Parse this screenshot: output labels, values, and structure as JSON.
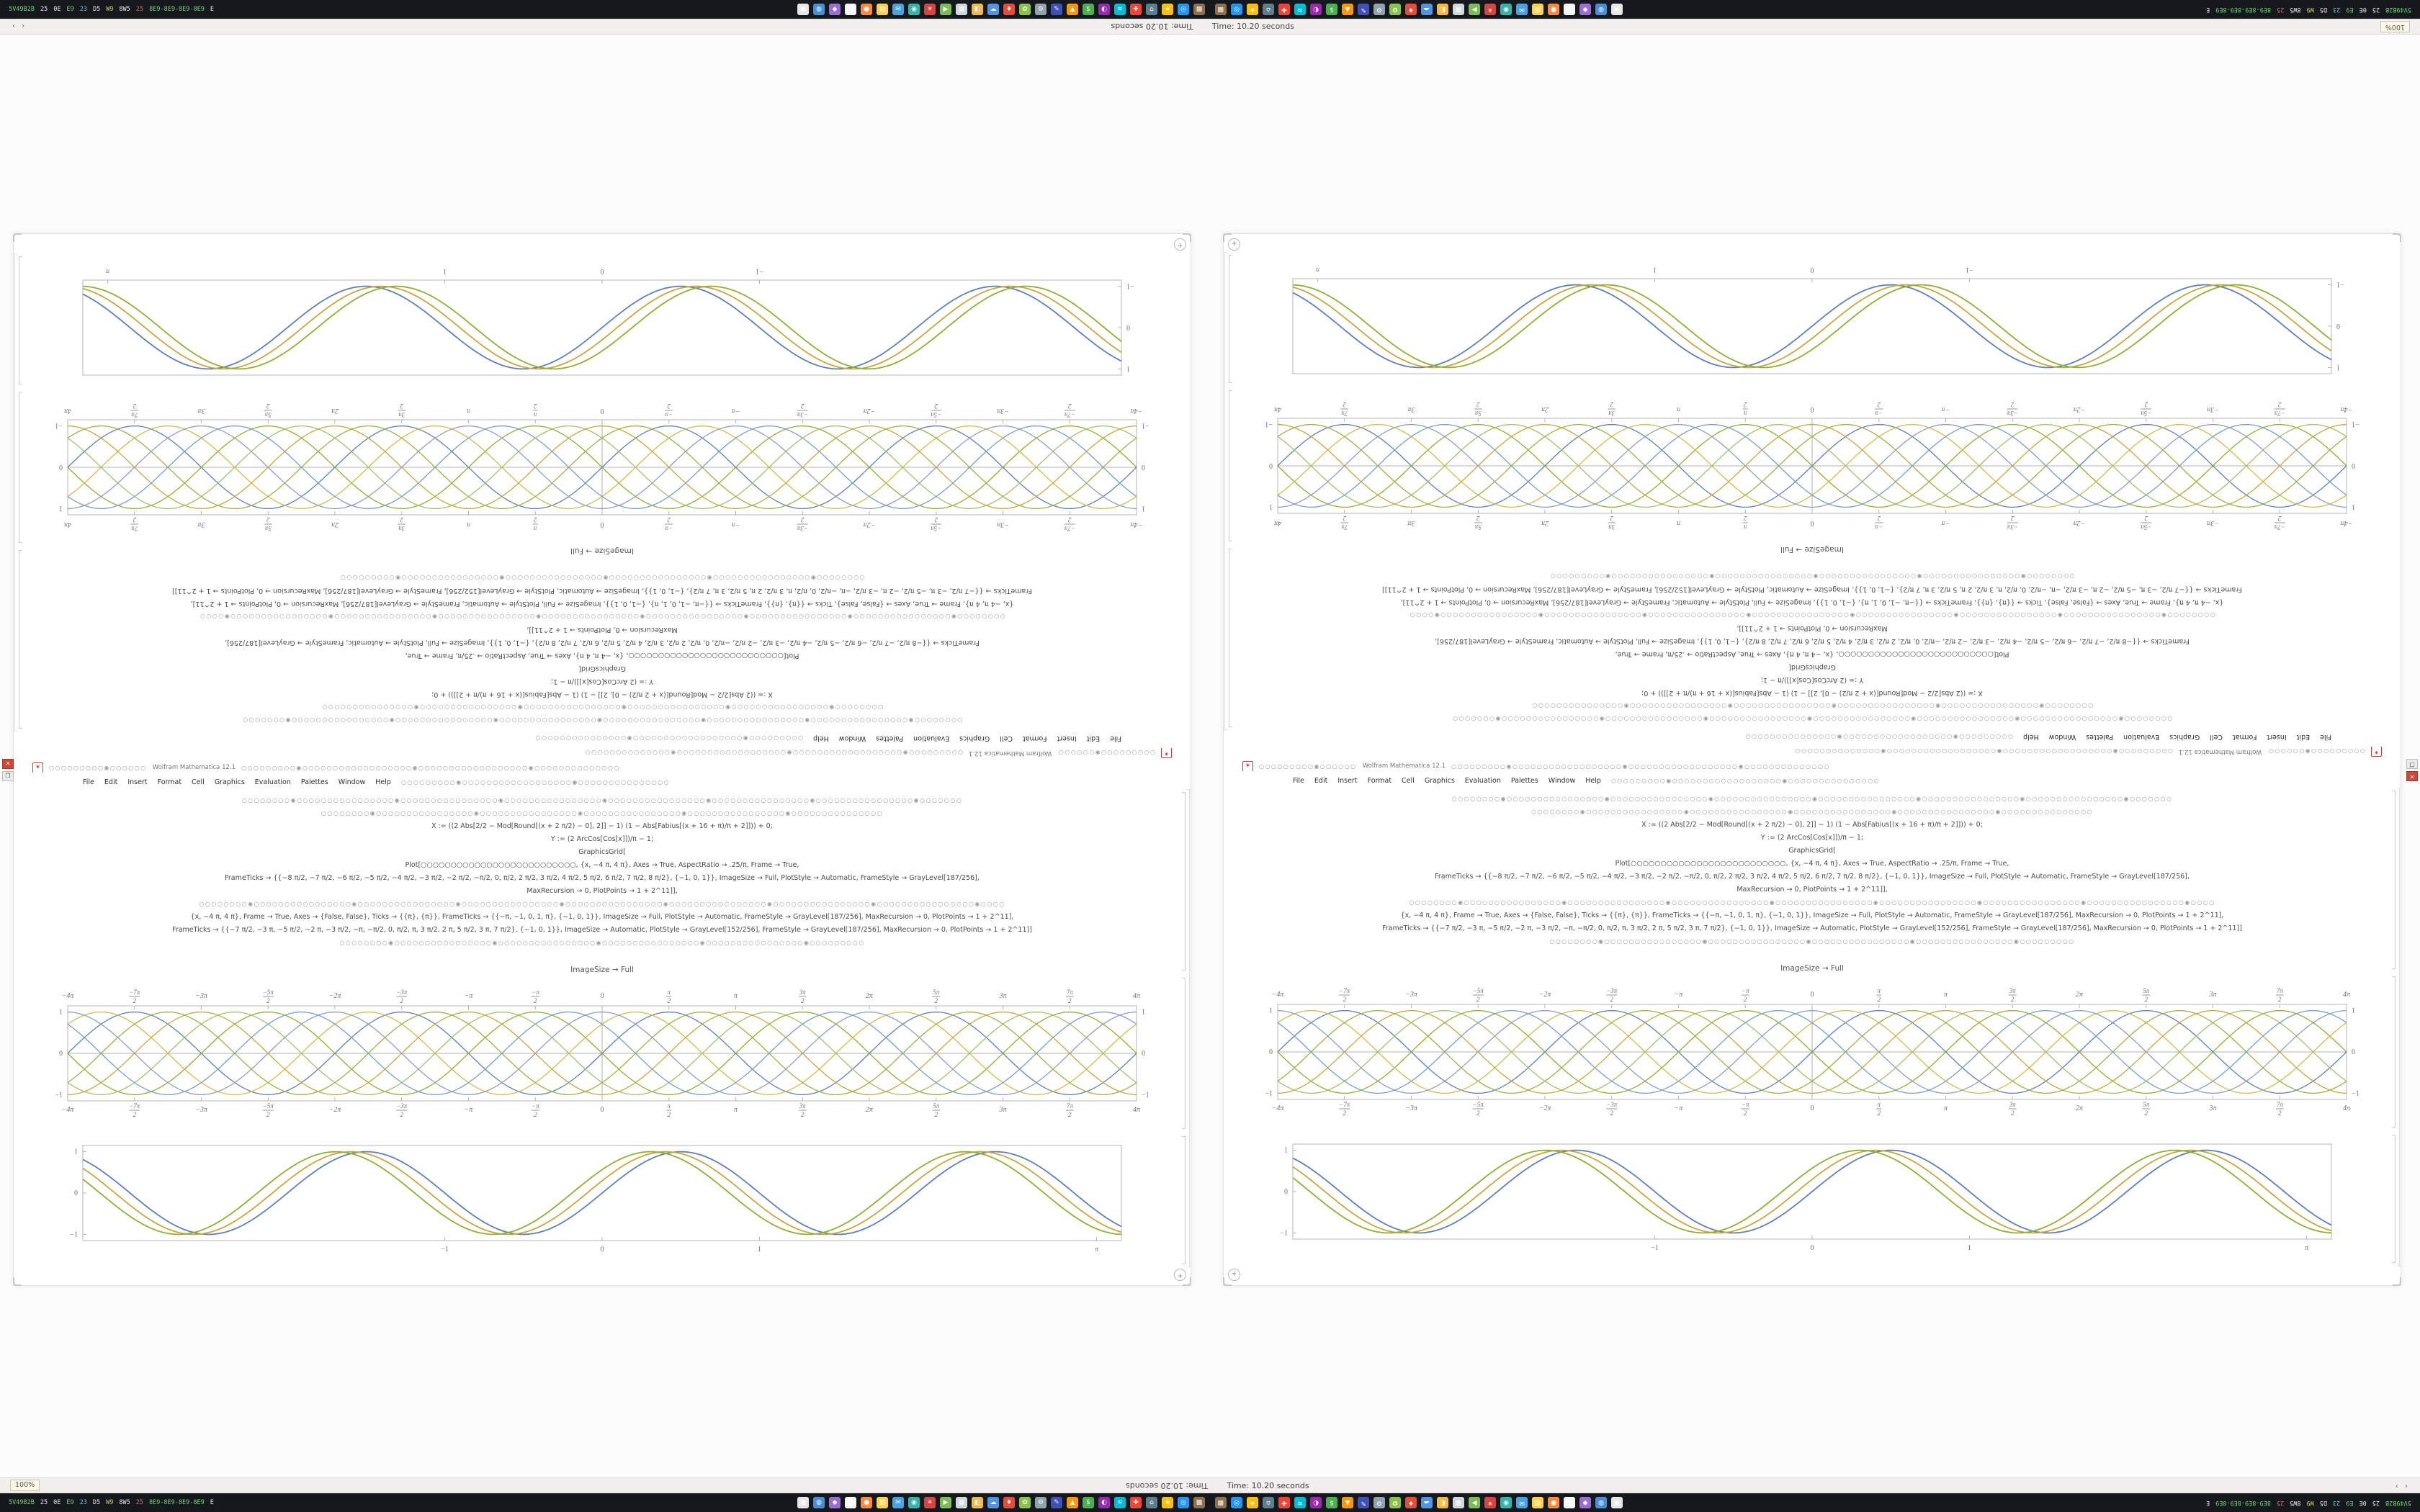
{
  "ui": {
    "spikey_glyph": "✶",
    "edge_button_glyph": "+",
    "close_glyph": "✕",
    "restore_glyph": "❐"
  },
  "taskbar": {
    "left_segments": [
      {
        "text": "5V49B2B",
        "color": "#6fd66f"
      },
      {
        "text": "25",
        "color": "#e8e8e8"
      },
      {
        "text": "0E",
        "color": "#e8e8e8"
      },
      {
        "text": "E9",
        "color": "#6fd66f"
      },
      {
        "text": "23",
        "color": "#5fd3d3"
      },
      {
        "text": "D5",
        "color": "#e8e8e8"
      },
      {
        "text": "W9",
        "color": "#d3d35f"
      },
      {
        "text": "8W5",
        "color": "#e8e8e8"
      },
      {
        "text": "25",
        "color": "#d66f6f"
      },
      {
        "text": "8E9-8E9-8E9-8E9",
        "color": "#6fd66f"
      },
      {
        "text": "E",
        "color": "#e8e8e8"
      }
    ],
    "icons": [
      {
        "name": "file-manager",
        "bg": "#e6e6e6",
        "glyph": "▣"
      },
      {
        "name": "browser-blue",
        "bg": "#4a8fd4",
        "glyph": "◍"
      },
      {
        "name": "purple-app",
        "bg": "#9a6fd0",
        "glyph": "◆"
      },
      {
        "name": "text-editor",
        "bg": "#f5f5f5",
        "glyph": "▤"
      },
      {
        "name": "firefox",
        "bg": "#ff8a3c",
        "glyph": "●"
      },
      {
        "name": "folder",
        "bg": "#ffd24a",
        "glyph": "▨"
      },
      {
        "name": "mail",
        "bg": "#4aa3e0",
        "glyph": "✉"
      },
      {
        "name": "teal-app",
        "bg": "#35b5a9",
        "glyph": "◉"
      },
      {
        "name": "mathematica",
        "bg": "#d64541",
        "glyph": "✶"
      },
      {
        "name": "media-player",
        "bg": "#7ebc59",
        "glyph": "▶"
      },
      {
        "name": "archive",
        "bg": "#cfd8dc",
        "glyph": "▦"
      },
      {
        "name": "image-viewer",
        "bg": "#f4b942",
        "glyph": "◧"
      },
      {
        "name": "cloud",
        "bg": "#5294e2",
        "glyph": "☁"
      },
      {
        "name": "pdf-reader",
        "bg": "#e44d3a",
        "glyph": "♦"
      },
      {
        "name": "photos",
        "bg": "#8bc34a",
        "glyph": "✿"
      },
      {
        "name": "settings",
        "bg": "#90a4ae",
        "glyph": "⚙"
      },
      {
        "name": "notes",
        "bg": "#3f51b5",
        "glyph": "✎"
      },
      {
        "name": "warning-tool",
        "bg": "#ff9800",
        "glyph": "▲"
      },
      {
        "name": "finance",
        "bg": "#4caf50",
        "glyph": "$"
      },
      {
        "name": "contrast-app",
        "bg": "#9c27b0",
        "glyph": "◐"
      },
      {
        "name": "waves-app",
        "bg": "#00bcd4",
        "glyph": "≋"
      },
      {
        "name": "health-app",
        "bg": "#f44336",
        "glyph": "✚"
      },
      {
        "name": "home-app",
        "bg": "#607d8b",
        "glyph": "⌂"
      },
      {
        "name": "favorites",
        "bg": "#ffc107",
        "glyph": "★"
      },
      {
        "name": "globe-app",
        "bg": "#2196f3",
        "glyph": "◎"
      },
      {
        "name": "package-app",
        "bg": "#8e6f4e",
        "glyph": "▩"
      }
    ]
  },
  "statusbar": {
    "time_label": "Time: 10.20 seconds",
    "zoom_label": "100%",
    "arrows": "‹ ›"
  },
  "window": {
    "title": "Wolfram Mathematica 12.1",
    "title_left_circles": 16,
    "title_right_circles": 62,
    "menu": [
      "File",
      "Edit",
      "Insert",
      "Format",
      "Cell",
      "Graphics",
      "Evaluation",
      "Palettes",
      "Window",
      "Help"
    ],
    "menu_right_circles": 44,
    "caption": "ImageSize → Full",
    "code_lines": [
      {
        "kind": "circles",
        "count": 118
      },
      {
        "kind": "circles",
        "count": 92
      },
      {
        "kind": "text",
        "text": "X := ((2 Abs[2/2 − Mod[Round[(x + 2 π/2) − 0], 2]] − 1) (1 − Abs[Fabius[(x + 16 + π)/π + 2]])) + 0;"
      },
      {
        "kind": "text",
        "text": "Y := (2 ArcCos[Cos[x]])/π − 1;"
      },
      {
        "kind": "text",
        "text": "GraphicsGrid["
      },
      {
        "kind": "text",
        "text": "Plot[○○○○○○○○○○○○○○○○○○○○○○○○○○, {x, −4 π, 4 π}, Axes → True, AspectRatio → .25/π, Frame → True,"
      },
      {
        "kind": "text",
        "text": "FrameTicks → {{−8 π/2, −7 π/2, −6 π/2, −5 π/2, −4 π/2, −3 π/2, −2 π/2, −π/2, 0, π/2, 2 π/2, 3 π/2, 4 π/2, 5 π/2, 6 π/2, 7 π/2, 8 π/2}, {−1, 0, 1}}, ImageSize → Full, PlotStyle → Automatic, FrameStyle → GrayLevel[187/256],"
      },
      {
        "kind": "text",
        "text": "MaxRecursion → 0, PlotPoints → 1 + 2^11]],"
      },
      {
        "kind": "circles",
        "count": 132
      },
      {
        "kind": "text",
        "text": "{x, −4 π, 4 π}, Frame → True, Axes → {False, False}, Ticks → {{π}, {π}}, FrameTicks → {{−π, −1, 0, 1, π}, {−1, 0, 1}}, ImageSize → Full, PlotStyle → Automatic, FrameStyle → GrayLevel[187/256], MaxRecursion → 0, PlotPoints → 1 + 2^11],"
      },
      {
        "kind": "text",
        "text": "FrameTicks → {{−7 π/2, −3 π, −5 π/2, −2 π, −3 π/2, −π, −π/2, 0, π/2, π, 3 π/2, 2 π, 5 π/2, 3 π, 7 π/2}, {−1, 0, 1}}, ImageSize → Automatic, PlotStyle → GrayLevel[152/256], FrameStyle → GrayLevel[187/256], MaxRecursion → 0, PlotPoints → 1 + 2^11]]"
      },
      {
        "kind": "circles",
        "count": 86
      }
    ]
  },
  "chart_data": [
    {
      "id": "braid",
      "type": "line",
      "title": "",
      "xlabel": "",
      "ylabel": "",
      "x_range": [
        -12.566,
        12.566
      ],
      "ylim": [
        -1,
        1
      ],
      "frame": true,
      "axes": true,
      "grid": false,
      "tick_labels_top": true,
      "stroke": 1.3,
      "margins": {
        "l": 38,
        "t": 30,
        "r": 38,
        "b": 34
      },
      "x_ticks": [
        {
          "pos": -12.566,
          "label": "−4π"
        },
        {
          "pos": -10.996,
          "label": "−7π|2"
        },
        {
          "pos": -9.4248,
          "label": "−3π"
        },
        {
          "pos": -7.854,
          "label": "−5π|2"
        },
        {
          "pos": -6.2832,
          "label": "−2π"
        },
        {
          "pos": -4.7124,
          "label": "−3π|2"
        },
        {
          "pos": -3.1416,
          "label": "−π"
        },
        {
          "pos": -1.5708,
          "label": "−π|2"
        },
        {
          "pos": 0,
          "label": "0"
        },
        {
          "pos": 1.5708,
          "label": "π|2"
        },
        {
          "pos": 3.1416,
          "label": "π"
        },
        {
          "pos": 4.7124,
          "label": "3π|2"
        },
        {
          "pos": 6.2832,
          "label": "2π"
        },
        {
          "pos": 7.854,
          "label": "5π|2"
        },
        {
          "pos": 9.4248,
          "label": "3π"
        },
        {
          "pos": 10.996,
          "label": "7π|2"
        },
        {
          "pos": 12.566,
          "label": "4π"
        }
      ],
      "y_ticks": [
        {
          "pos": -1,
          "label": "−1"
        },
        {
          "pos": 0,
          "label": "0"
        },
        {
          "pos": 1,
          "label": "1"
        }
      ],
      "series": [
        {
          "name": "sin(x)",
          "freq": 1,
          "phase": 0,
          "sign": 1,
          "color": "#5e81b5"
        },
        {
          "name": "-sin(x)",
          "freq": 1,
          "phase": 0,
          "sign": -1,
          "color": "#8fb032"
        },
        {
          "name": "sin(x+π/4)",
          "freq": 1,
          "phase": 0.7854,
          "sign": 1,
          "color": "#d5bb4c"
        },
        {
          "name": "-sin(x+π/4)",
          "freq": 1,
          "phase": 0.7854,
          "sign": -1,
          "color": "#a2c26b"
        },
        {
          "name": "sin(x+π/2)",
          "freq": 1,
          "phase": 1.5708,
          "sign": 1,
          "color": "#8f9fbb"
        },
        {
          "name": "-sin(x+π/2)",
          "freq": 1,
          "phase": 1.5708,
          "sign": -1,
          "color": "#c9a63e"
        },
        {
          "name": "sin(x+3π/4)",
          "freq": 1,
          "phase": 2.3562,
          "sign": 1,
          "color": "#77a0c9"
        },
        {
          "name": "-sin(x+3π/4)",
          "freq": 1,
          "phase": 2.3562,
          "sign": -1,
          "color": "#9bb347"
        }
      ]
    },
    {
      "id": "smooth",
      "type": "line",
      "title": "",
      "xlabel": "",
      "ylabel": "",
      "x_range": [
        -3.3,
        3.3
      ],
      "ylim": [
        -1,
        1
      ],
      "frame": true,
      "axes": false,
      "grid": false,
      "tick_labels_top": false,
      "stroke": 1.8,
      "margins": {
        "l": 34,
        "t": 10,
        "r": 34,
        "b": 30
      },
      "x_ticks": [
        {
          "pos": -1,
          "label": "−1"
        },
        {
          "pos": 0,
          "label": "0"
        },
        {
          "pos": 1,
          "label": "1"
        },
        {
          "pos": 3.1416,
          "label": "π"
        }
      ],
      "y_ticks": [
        {
          "pos": -1,
          "label": "−1"
        },
        {
          "pos": 0,
          "label": "0"
        },
        {
          "pos": 1,
          "label": "1"
        }
      ],
      "series": [
        {
          "name": "sin(π x)",
          "freq": 3.1416,
          "phase": 0,
          "sign": 1,
          "color": "#5e81b5"
        },
        {
          "name": "sin(π x + 0.3)",
          "freq": 3.1416,
          "phase": 0.3,
          "sign": 1,
          "color": "#c9a63e"
        },
        {
          "name": "sin(π x + 0.6)",
          "freq": 3.1416,
          "phase": 0.6,
          "sign": 1,
          "color": "#8fb032"
        }
      ]
    }
  ]
}
